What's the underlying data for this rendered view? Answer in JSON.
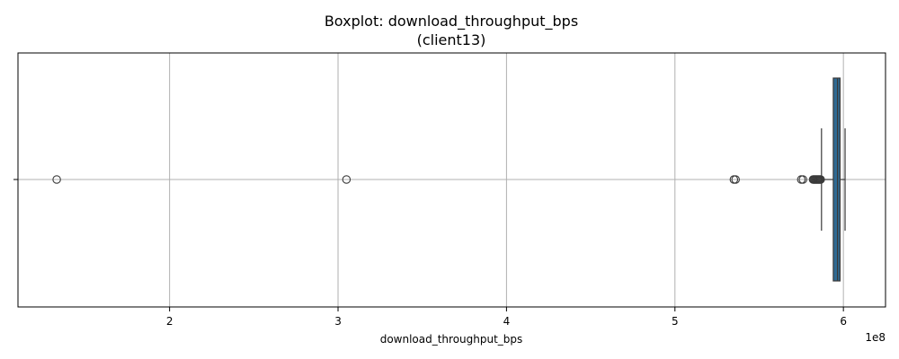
{
  "chart_data": {
    "type": "boxplot",
    "orientation": "horizontal",
    "title": [
      "Boxplot: download_throughput_bps",
      "(client13)"
    ],
    "xlabel": "download_throughput_bps",
    "ylabel": "",
    "x_offset_label": "1e8",
    "x_ticks": [
      2,
      3,
      4,
      5,
      6
    ],
    "x_tick_labels": [
      "2",
      "3",
      "4",
      "5",
      "6"
    ],
    "xlim": [
      1.1,
      6.25
    ],
    "grid": true,
    "colors": {
      "box_fill": "#2f6a93",
      "box_edge": "#3a3a3a",
      "grid": "#b0b0b0"
    },
    "box": {
      "q1": 5.94,
      "median": 5.965,
      "q3": 5.98,
      "whisker_low": 5.87,
      "whisker_high": 6.01
    },
    "outliers": [
      1.33,
      3.05,
      5.35,
      5.36,
      5.75,
      5.76,
      5.82,
      5.825,
      5.83,
      5.835,
      5.84,
      5.845,
      5.85,
      5.855,
      5.86,
      5.865
    ]
  }
}
